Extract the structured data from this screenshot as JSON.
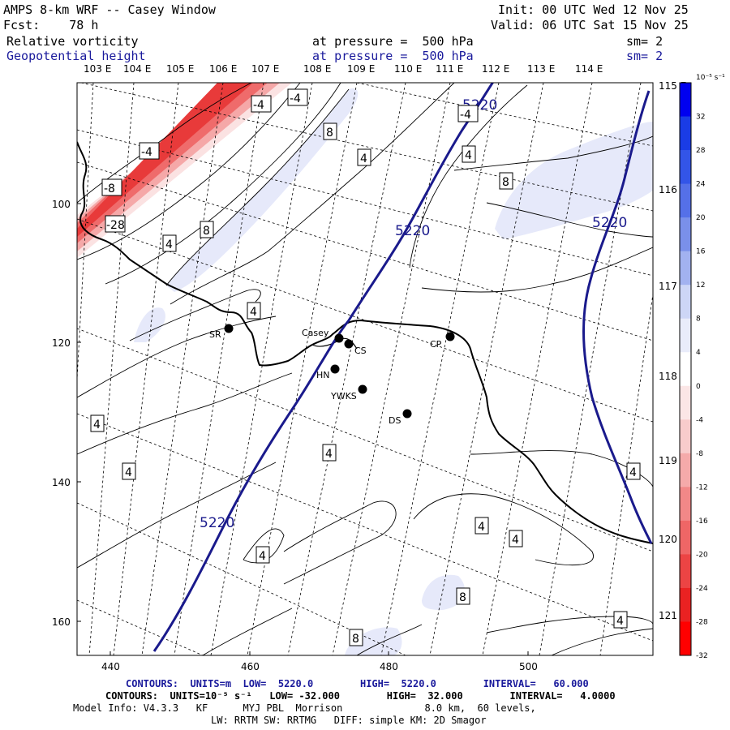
{
  "header": {
    "title": "AMPS 8-km WRF -- Casey Window",
    "fcst": "Fcst:    78 h",
    "init": "Init: 00 UTC Wed 12 Nov 25",
    "valid": "Valid: 06 UTC Sat 15 Nov 25",
    "field1_name": "Relative vorticity",
    "field1_level": "at pressure =  500 hPa",
    "field1_sm": "sm= 2",
    "field2_name": "Geopotential height",
    "field2_level": "at pressure =  500 hPa",
    "field2_sm": "sm= 2"
  },
  "longitude_labels_top": [
    "103 E",
    "104 E",
    "105 E",
    "106 E",
    "107 E",
    "108 E",
    "109 E",
    "110 E",
    "111 E",
    "112 E",
    "113 E",
    "114 E"
  ],
  "longitude_labels_right": [
    "115 E",
    "116 E",
    "117 E",
    "118 E",
    "119 E",
    "120 E",
    "121 E"
  ],
  "x_axis_ticks": [
    "440",
    "460",
    "480",
    "500"
  ],
  "y_axis_ticks": [
    "100",
    "120",
    "140",
    "160"
  ],
  "stations": [
    "SR",
    "Casey",
    "CS",
    "CP",
    "HN",
    "YWKS",
    "DS"
  ],
  "contour_labels": {
    "height": "5220",
    "vort_pos4": "4",
    "vort_pos8": "8",
    "vort_neg4": "-4",
    "vort_neg8": "-8",
    "vort_neg28": "-28"
  },
  "colorbar": {
    "units": "10⁻⁵ s⁻¹",
    "labels": [
      "32",
      "28",
      "24",
      "20",
      "16",
      "12",
      "8",
      "4",
      "0",
      "-4",
      "-8",
      "-12",
      "-16",
      "-20",
      "-24",
      "-28",
      "-32"
    ],
    "colors": [
      "#0000f0",
      "#1a3ce6",
      "#3355e8",
      "#5570e8",
      "#7a90ea",
      "#a2b2f0",
      "#cdd6f6",
      "#e9ecfa",
      "#ffffff",
      "#fbe6e6",
      "#f8cccc",
      "#f5aaaa",
      "#f28888",
      "#ef6666",
      "#ec4444",
      "#ea2222",
      "#ff0000"
    ]
  },
  "footer": {
    "line1": "CONTOURS:  UNITS=m  LOW=  5220.0        HIGH=  5220.0        INTERVAL=   60.000",
    "line2": "CONTOURS:  UNITS=10⁻⁵ s⁻¹   LOW= -32.000        HIGH=  32.000        INTERVAL=   4.0000",
    "line3": "Model Info: V4.3.3   KF      MYJ PBL  Morrison              8.0 km,  60 levels,",
    "line4": "LW: RRTM SW: RRTMG   DIFF: simple KM: 2D Smagor"
  }
}
